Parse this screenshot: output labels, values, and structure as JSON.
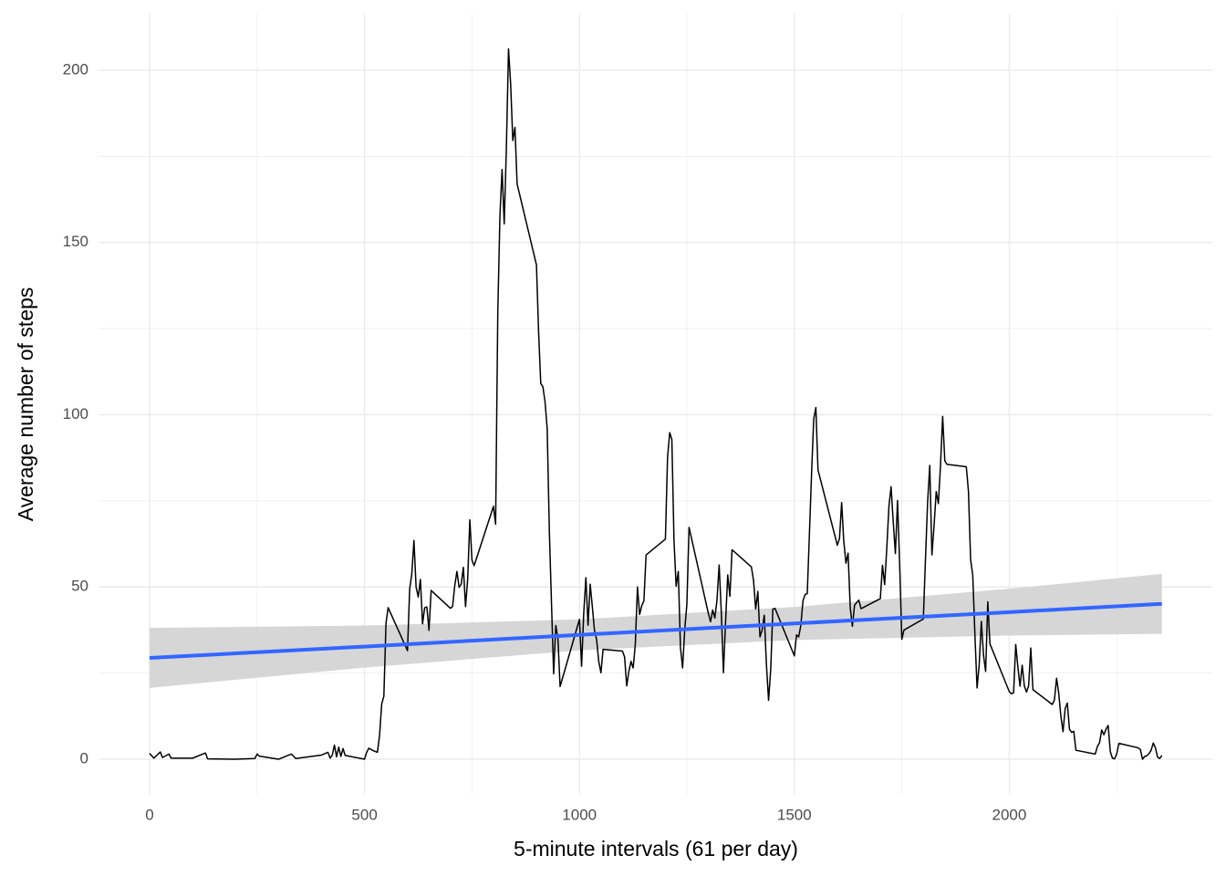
{
  "chart_data": {
    "type": "line",
    "x_label": "5-minute intervals (61 per day)",
    "y_label": "Average number of steps",
    "color": "#000000",
    "x": [
      0,
      10,
      25,
      30,
      45,
      50,
      100,
      130,
      135,
      200,
      245,
      250,
      255,
      300,
      330,
      340,
      400,
      415,
      420,
      425,
      430,
      435,
      440,
      445,
      450,
      455,
      500,
      505,
      510,
      520,
      530,
      535,
      540,
      545,
      550,
      555,
      600,
      605,
      610,
      615,
      620,
      625,
      630,
      635,
      640,
      645,
      650,
      655,
      700,
      705,
      710,
      715,
      720,
      725,
      730,
      735,
      740,
      745,
      750,
      755,
      800,
      805,
      810,
      815,
      820,
      825,
      830,
      835,
      840,
      845,
      850,
      855,
      900,
      905,
      910,
      915,
      920,
      925,
      930,
      935,
      940,
      945,
      950,
      955,
      1000,
      1005,
      1010,
      1015,
      1020,
      1025,
      1030,
      1035,
      1040,
      1045,
      1050,
      1055,
      1100,
      1105,
      1110,
      1115,
      1120,
      1125,
      1130,
      1135,
      1140,
      1145,
      1150,
      1155,
      1200,
      1205,
      1210,
      1215,
      1220,
      1225,
      1230,
      1235,
      1240,
      1245,
      1250,
      1255,
      1300,
      1305,
      1310,
      1315,
      1320,
      1325,
      1330,
      1335,
      1340,
      1345,
      1350,
      1355,
      1400,
      1405,
      1410,
      1415,
      1420,
      1425,
      1430,
      1435,
      1440,
      1445,
      1450,
      1455,
      1500,
      1505,
      1510,
      1515,
      1520,
      1525,
      1530,
      1535,
      1540,
      1545,
      1550,
      1555,
      1600,
      1605,
      1610,
      1615,
      1620,
      1625,
      1630,
      1635,
      1640,
      1645,
      1650,
      1655,
      1700,
      1705,
      1710,
      1715,
      1720,
      1725,
      1730,
      1735,
      1740,
      1745,
      1750,
      1755,
      1800,
      1805,
      1810,
      1815,
      1820,
      1825,
      1830,
      1835,
      1840,
      1845,
      1850,
      1855,
      1900,
      1905,
      1910,
      1915,
      1920,
      1925,
      1930,
      1935,
      1940,
      1945,
      1950,
      1955,
      2000,
      2005,
      2010,
      2015,
      2020,
      2025,
      2030,
      2035,
      2040,
      2045,
      2050,
      2055,
      2100,
      2105,
      2110,
      2115,
      2120,
      2125,
      2130,
      2135,
      2140,
      2145,
      2150,
      2155,
      2200,
      2205,
      2210,
      2215,
      2220,
      2225,
      2230,
      2235,
      2240,
      2245,
      2250,
      2255,
      2300,
      2305,
      2310,
      2315,
      2320,
      2325,
      2330,
      2335,
      2340,
      2345,
      2350,
      2355
    ],
    "values": [
      1.7,
      0.3,
      2.1,
      0.5,
      1.5,
      0.3,
      0.3,
      1.8,
      0.1,
      0,
      0.2,
      1.5,
      0.9,
      0,
      1.5,
      0.2,
      1.2,
      2.0,
      0.3,
      1.2,
      4.1,
      0.7,
      3.5,
      0.8,
      3.1,
      1.1,
      0,
      2.0,
      3.2,
      2.5,
      2.0,
      6.9,
      16,
      18.3,
      39.5,
      44,
      31.5,
      49.3,
      53.8,
      63.5,
      50,
      47.1,
      52.2,
      39.3,
      44,
      44.2,
      37.4,
      49,
      43.8,
      44.4,
      50.5,
      54.5,
      49.9,
      50.8,
      55.7,
      44.3,
      52.3,
      69.5,
      57.8,
      56.2,
      73.4,
      68.2,
      129.4,
      157.5,
      171.2,
      155.4,
      177.3,
      206.2,
      195.9,
      179.6,
      183.4,
      167,
      143.5,
      124,
      109.1,
      108.1,
      103.7,
      95.97,
      66.2,
      45.2,
      24.8,
      38.8,
      34.98,
      21.1,
      40.6,
      26.98,
      42.4,
      52.7,
      38.9,
      50.8,
      44.3,
      37.4,
      34.7,
      28.3,
      25.1,
      31.9,
      31.4,
      29.7,
      21.3,
      25.5,
      28.4,
      26.5,
      33.4,
      50,
      42,
      44.6,
      46,
      59.3,
      63.9,
      87.7,
      94.8,
      92.8,
      63.4,
      50.2,
      54.5,
      32.4,
      26.5,
      37.7,
      45.1,
      67.3,
      42.3,
      39.9,
      43.3,
      40.98,
      46.2,
      56.4,
      42.8,
      25.1,
      39.97,
      53.5,
      47.3,
      60.8,
      55.8,
      51.96,
      43.6,
      48.7,
      35.5,
      37.5,
      41.8,
      27.5,
      17.1,
      26.1,
      43.6,
      43.8,
      30,
      36.1,
      35.5,
      38.8,
      45.96,
      47.8,
      48.1,
      65.3,
      82.9,
      98.7,
      102.1,
      83.96,
      62.1,
      64.1,
      74.5,
      63.2,
      56.9,
      59.8,
      43.9,
      38.6,
      44.7,
      45.5,
      46.2,
      43.7,
      46.6,
      56.3,
      50.7,
      61.2,
      73.4,
      79.1,
      68.9,
      59.7,
      75.1,
      56.5,
      34.8,
      37.5,
      40.7,
      58,
      74.7,
      85.3,
      59.3,
      67.8,
      77.7,
      74.2,
      85.3,
      99.5,
      86.6,
      85.6,
      84.9,
      77.8,
      58,
      53.4,
      36.3,
      20.7,
      27.4,
      40,
      30.2,
      25.5,
      45.7,
      33.5,
      19.6,
      19,
      19.3,
      33.3,
      26.8,
      21.2,
      27.3,
      21.3,
      19.5,
      21.3,
      32.3,
      20.2,
      15.9,
      17.2,
      23.5,
      19.2,
      12.5,
      8.0,
      14.7,
      16.3,
      8.7,
      7.8,
      8.1,
      2.6,
      1.5,
      3.7,
      4.8,
      8.5,
      7.1,
      8.7,
      9.8,
      2.2,
      0.3,
      0.1,
      1.6,
      4.6,
      3.3,
      2.8,
      0,
      0.8,
      1,
      1.6,
      2.6,
      4.7,
      3.3,
      0.6,
      0.2,
      1.1
    ],
    "smooth": {
      "method": "lm",
      "color": "#3366FF",
      "band_color": "#d6d6d6",
      "x": [
        0,
        500,
        1000,
        1500,
        2000,
        2355
      ],
      "values": [
        29.4,
        32.7,
        36.1,
        39.4,
        42.7,
        45.1
      ],
      "lower": [
        20.7,
        26.6,
        31.6,
        34.6,
        35.9,
        36.4
      ],
      "upper": [
        38.1,
        38.8,
        40.6,
        44.2,
        49.5,
        53.8
      ]
    },
    "xlim": [
      -117.75,
      2472.75
    ],
    "ylim": [
      -10.3,
      216.5
    ],
    "xticks": [
      0,
      500,
      1000,
      1500,
      2000
    ],
    "yticks": [
      0,
      50,
      100,
      150,
      200
    ],
    "xminor": [
      250,
      750,
      1250,
      1750,
      2250
    ],
    "yminor": [
      25,
      75,
      125,
      175
    ],
    "grid": true,
    "grid_color": "#ebebeb"
  }
}
